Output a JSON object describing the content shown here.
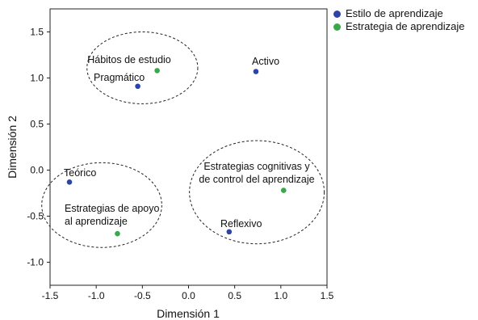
{
  "chart_data": {
    "type": "scatter",
    "xlabel": "Dimensión 1",
    "ylabel": "Dimensión 2",
    "xlim": [
      -1.5,
      1.5
    ],
    "ylim": [
      -1.25,
      1.75
    ],
    "xticks": [
      "-1.5",
      "-1.0",
      "-0.5",
      "0.0",
      "0.5",
      "1.0",
      "1.5"
    ],
    "yticks": [
      "-1.0",
      "-0.5",
      "0.0",
      "0.5",
      "1.0",
      "1.5"
    ],
    "grid": false,
    "legend_position": "top-right outside",
    "series": [
      {
        "name": "Estilo de aprendizaje",
        "color": "#2c44a8",
        "points": [
          {
            "label": "Activo",
            "x": 0.73,
            "y": 1.07
          },
          {
            "label": "Pragmático",
            "x": -0.55,
            "y": 0.91
          },
          {
            "label": "Teórico",
            "x": -1.29,
            "y": -0.13
          },
          {
            "label": "Reflexivo",
            "x": 0.44,
            "y": -0.67
          }
        ]
      },
      {
        "name": "Estrategia de aprendizaje",
        "color": "#3aa84a",
        "points": [
          {
            "label": "Hábitos de estudio",
            "x": -0.34,
            "y": 1.08
          },
          {
            "label": "Estrategias cognitivas y de control del aprendizaje",
            "x": 1.03,
            "y": -0.22
          },
          {
            "label": "Estrategias de apoyo al aprendizaje",
            "x": -0.77,
            "y": -0.69
          }
        ]
      }
    ],
    "clusters": [
      {
        "cx": -0.5,
        "cy": 1.11,
        "rx": 0.6,
        "ry": 0.39
      },
      {
        "cx": -0.94,
        "cy": -0.38,
        "rx": 0.65,
        "ry": 0.46
      },
      {
        "cx": 0.74,
        "cy": -0.24,
        "rx": 0.73,
        "ry": 0.56
      }
    ]
  }
}
